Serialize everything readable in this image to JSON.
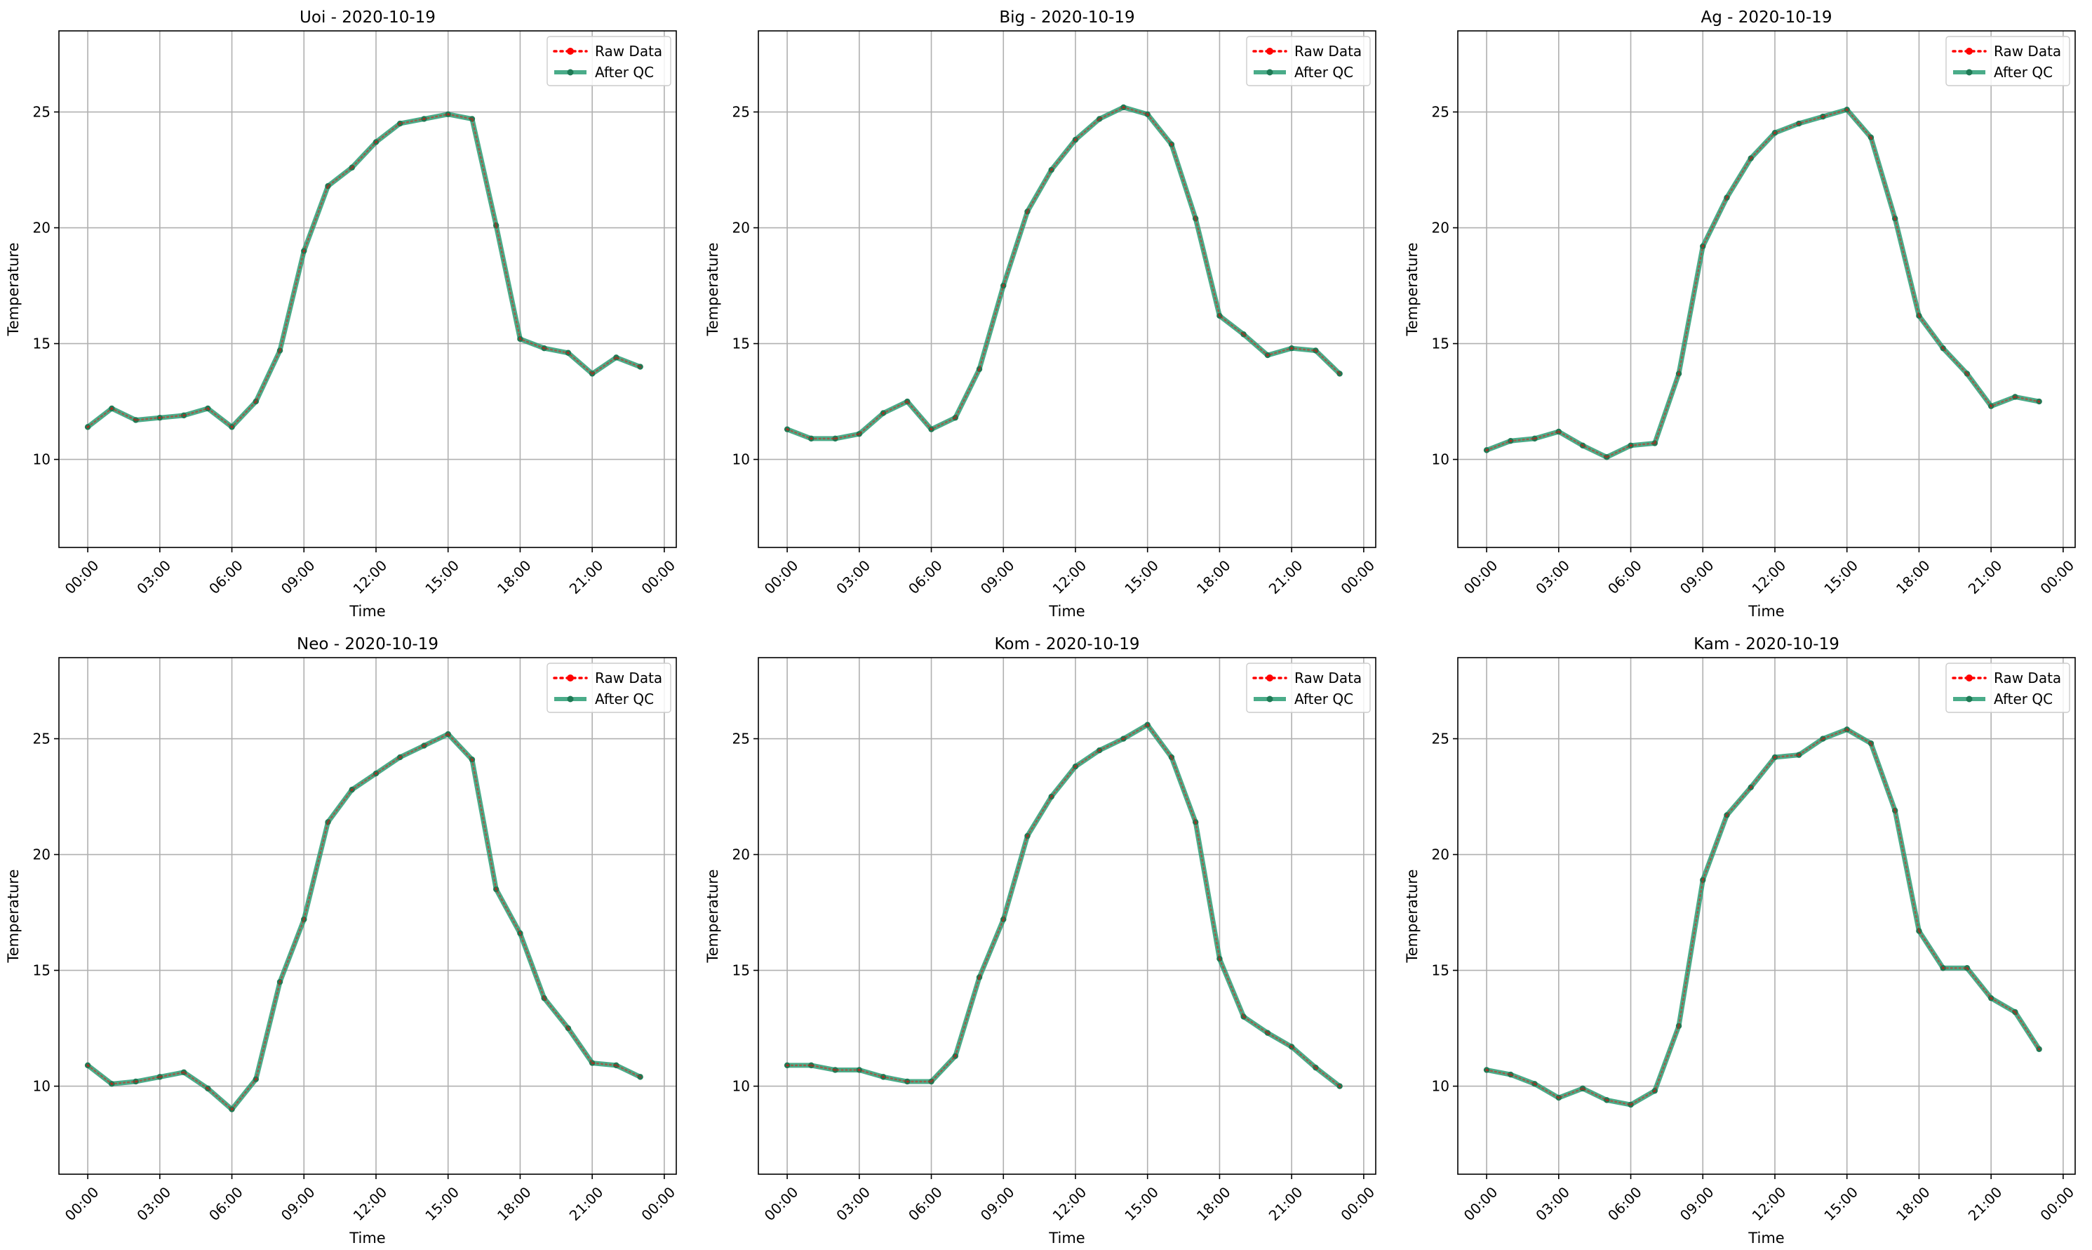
{
  "colors": {
    "raw": "#ff0000",
    "qc": "#2a9d74",
    "qc_marker": "#1f7a55",
    "grid": "#b0b0b0",
    "axes": "#000000"
  },
  "legend": {
    "raw": "Raw Data",
    "qc": "After QC"
  },
  "chart_data": [
    {
      "type": "line",
      "title": "Uoi - 2020-10-19",
      "xlabel": "Time",
      "ylabel": "Temperature",
      "ylim": [
        6.2,
        28.5
      ],
      "xlim_hours": [
        -1.2,
        24.5
      ],
      "x_tick_labels": [
        "00:00",
        "03:00",
        "06:00",
        "09:00",
        "12:00",
        "15:00",
        "18:00",
        "21:00",
        "00:00"
      ],
      "y_ticks": [
        10,
        15,
        20,
        25
      ],
      "grid": true,
      "legend_position": "top-right",
      "x_hours": [
        0,
        1,
        2,
        3,
        4,
        5,
        6,
        7,
        8,
        9,
        10,
        11,
        12,
        13,
        14,
        15,
        16,
        17,
        18,
        19,
        20,
        21,
        22,
        23
      ],
      "series": [
        {
          "name": "Raw Data",
          "values": [
            11.4,
            12.2,
            11.7,
            11.8,
            11.9,
            12.2,
            11.4,
            12.5,
            14.7,
            19.0,
            21.8,
            22.6,
            23.7,
            24.5,
            24.7,
            24.9,
            24.7,
            20.1,
            15.2,
            14.8,
            14.6,
            13.7,
            14.4,
            14.0
          ]
        },
        {
          "name": "After QC",
          "values": [
            11.4,
            12.2,
            11.7,
            11.8,
            11.9,
            12.2,
            11.4,
            12.5,
            14.7,
            19.0,
            21.8,
            22.6,
            23.7,
            24.5,
            24.7,
            24.9,
            24.7,
            20.1,
            15.2,
            14.8,
            14.6,
            13.7,
            14.4,
            14.0
          ]
        }
      ]
    },
    {
      "type": "line",
      "title": "Big - 2020-10-19",
      "xlabel": "Time",
      "ylabel": "Temperature",
      "ylim": [
        6.2,
        28.5
      ],
      "xlim_hours": [
        -1.2,
        24.5
      ],
      "x_tick_labels": [
        "00:00",
        "03:00",
        "06:00",
        "09:00",
        "12:00",
        "15:00",
        "18:00",
        "21:00",
        "00:00"
      ],
      "y_ticks": [
        10,
        15,
        20,
        25
      ],
      "grid": true,
      "legend_position": "top-right",
      "x_hours": [
        0,
        1,
        2,
        3,
        4,
        5,
        6,
        7,
        8,
        9,
        10,
        11,
        12,
        13,
        14,
        15,
        16,
        17,
        18,
        19,
        20,
        21,
        22,
        23
      ],
      "series": [
        {
          "name": "Raw Data",
          "values": [
            11.3,
            10.9,
            10.9,
            11.1,
            12.0,
            12.5,
            11.3,
            11.8,
            13.9,
            17.5,
            20.7,
            22.5,
            23.8,
            24.7,
            25.2,
            24.9,
            23.6,
            20.4,
            16.2,
            15.4,
            14.5,
            14.8,
            14.7,
            13.7
          ]
        },
        {
          "name": "After QC",
          "values": [
            11.3,
            10.9,
            10.9,
            11.1,
            12.0,
            12.5,
            11.3,
            11.8,
            13.9,
            17.5,
            20.7,
            22.5,
            23.8,
            24.7,
            25.2,
            24.9,
            23.6,
            20.4,
            16.2,
            15.4,
            14.5,
            14.8,
            14.7,
            13.7
          ]
        }
      ]
    },
    {
      "type": "line",
      "title": "Ag - 2020-10-19",
      "xlabel": "Time",
      "ylabel": "Temperature",
      "ylim": [
        6.2,
        28.5
      ],
      "xlim_hours": [
        -1.2,
        24.5
      ],
      "x_tick_labels": [
        "00:00",
        "03:00",
        "06:00",
        "09:00",
        "12:00",
        "15:00",
        "18:00",
        "21:00",
        "00:00"
      ],
      "y_ticks": [
        10,
        15,
        20,
        25
      ],
      "grid": true,
      "legend_position": "top-right",
      "x_hours": [
        0,
        1,
        2,
        3,
        4,
        5,
        6,
        7,
        8,
        9,
        10,
        11,
        12,
        13,
        14,
        15,
        16,
        17,
        18,
        19,
        20,
        21,
        22,
        23
      ],
      "series": [
        {
          "name": "Raw Data",
          "values": [
            10.4,
            10.8,
            10.9,
            11.2,
            10.6,
            10.1,
            10.6,
            10.7,
            13.7,
            19.2,
            21.3,
            23.0,
            24.1,
            24.5,
            24.8,
            25.1,
            23.9,
            20.4,
            16.2,
            14.8,
            13.7,
            12.3,
            12.7,
            12.5
          ]
        },
        {
          "name": "After QC",
          "values": [
            10.4,
            10.8,
            10.9,
            11.2,
            10.6,
            10.1,
            10.6,
            10.7,
            13.7,
            19.2,
            21.3,
            23.0,
            24.1,
            24.5,
            24.8,
            25.1,
            23.9,
            20.4,
            16.2,
            14.8,
            13.7,
            12.3,
            12.7,
            12.5
          ]
        }
      ]
    },
    {
      "type": "line",
      "title": "Neo - 2020-10-19",
      "xlabel": "Time",
      "ylabel": "Temperature",
      "ylim": [
        6.2,
        28.5
      ],
      "xlim_hours": [
        -1.2,
        24.5
      ],
      "x_tick_labels": [
        "00:00",
        "03:00",
        "06:00",
        "09:00",
        "12:00",
        "15:00",
        "18:00",
        "21:00",
        "00:00"
      ],
      "y_ticks": [
        10,
        15,
        20,
        25
      ],
      "grid": true,
      "legend_position": "top-right",
      "x_hours": [
        0,
        1,
        2,
        3,
        4,
        5,
        6,
        7,
        8,
        9,
        10,
        11,
        12,
        13,
        14,
        15,
        16,
        17,
        18,
        19,
        20,
        21,
        22,
        23
      ],
      "series": [
        {
          "name": "Raw Data",
          "values": [
            10.9,
            10.1,
            10.2,
            10.4,
            10.6,
            9.9,
            9.0,
            10.3,
            14.5,
            17.2,
            21.4,
            22.8,
            23.5,
            24.2,
            24.7,
            25.2,
            24.1,
            18.5,
            16.6,
            13.8,
            12.5,
            11.0,
            10.9,
            10.4
          ]
        },
        {
          "name": "After QC",
          "values": [
            10.9,
            10.1,
            10.2,
            10.4,
            10.6,
            9.9,
            9.0,
            10.3,
            14.5,
            17.2,
            21.4,
            22.8,
            23.5,
            24.2,
            24.7,
            25.2,
            24.1,
            18.5,
            16.6,
            13.8,
            12.5,
            11.0,
            10.9,
            10.4
          ]
        }
      ]
    },
    {
      "type": "line",
      "title": "Kom - 2020-10-19",
      "xlabel": "Time",
      "ylabel": "Temperature",
      "ylim": [
        6.2,
        28.5
      ],
      "xlim_hours": [
        -1.2,
        24.5
      ],
      "x_tick_labels": [
        "00:00",
        "03:00",
        "06:00",
        "09:00",
        "12:00",
        "15:00",
        "18:00",
        "21:00",
        "00:00"
      ],
      "y_ticks": [
        10,
        15,
        20,
        25
      ],
      "grid": true,
      "legend_position": "top-right",
      "x_hours": [
        0,
        1,
        2,
        3,
        4,
        5,
        6,
        7,
        8,
        9,
        10,
        11,
        12,
        13,
        14,
        15,
        16,
        17,
        18,
        19,
        20,
        21,
        22,
        23
      ],
      "series": [
        {
          "name": "Raw Data",
          "values": [
            10.9,
            10.9,
            10.7,
            10.7,
            10.4,
            10.2,
            10.2,
            11.3,
            14.7,
            17.2,
            20.8,
            22.5,
            23.8,
            24.5,
            25.0,
            25.6,
            24.2,
            21.4,
            15.5,
            13.0,
            12.3,
            11.7,
            10.8,
            10.0
          ]
        },
        {
          "name": "After QC",
          "values": [
            10.9,
            10.9,
            10.7,
            10.7,
            10.4,
            10.2,
            10.2,
            11.3,
            14.7,
            17.2,
            20.8,
            22.5,
            23.8,
            24.5,
            25.0,
            25.6,
            24.2,
            21.4,
            15.5,
            13.0,
            12.3,
            11.7,
            10.8,
            10.0
          ]
        }
      ]
    },
    {
      "type": "line",
      "title": "Kam - 2020-10-19",
      "xlabel": "Time",
      "ylabel": "Temperature",
      "ylim": [
        6.2,
        28.5
      ],
      "xlim_hours": [
        -1.2,
        24.5
      ],
      "x_tick_labels": [
        "00:00",
        "03:00",
        "06:00",
        "09:00",
        "12:00",
        "15:00",
        "18:00",
        "21:00",
        "00:00"
      ],
      "y_ticks": [
        10,
        15,
        20,
        25
      ],
      "grid": true,
      "legend_position": "top-right",
      "x_hours": [
        0,
        1,
        2,
        3,
        4,
        5,
        6,
        7,
        8,
        9,
        10,
        11,
        12,
        13,
        14,
        15,
        16,
        17,
        18,
        19,
        20,
        21,
        22,
        23
      ],
      "series": [
        {
          "name": "Raw Data",
          "values": [
            10.7,
            10.5,
            10.1,
            9.5,
            9.9,
            9.4,
            9.2,
            9.8,
            12.6,
            18.9,
            21.7,
            22.9,
            24.2,
            24.3,
            25.0,
            25.4,
            24.8,
            21.9,
            16.7,
            15.1,
            15.1,
            13.8,
            13.2,
            11.6
          ]
        },
        {
          "name": "After QC",
          "values": [
            10.7,
            10.5,
            10.1,
            9.5,
            9.9,
            9.4,
            9.2,
            9.8,
            12.6,
            18.9,
            21.7,
            22.9,
            24.2,
            24.3,
            25.0,
            25.4,
            24.8,
            21.9,
            16.7,
            15.1,
            15.1,
            13.8,
            13.2,
            11.6
          ]
        }
      ]
    }
  ]
}
